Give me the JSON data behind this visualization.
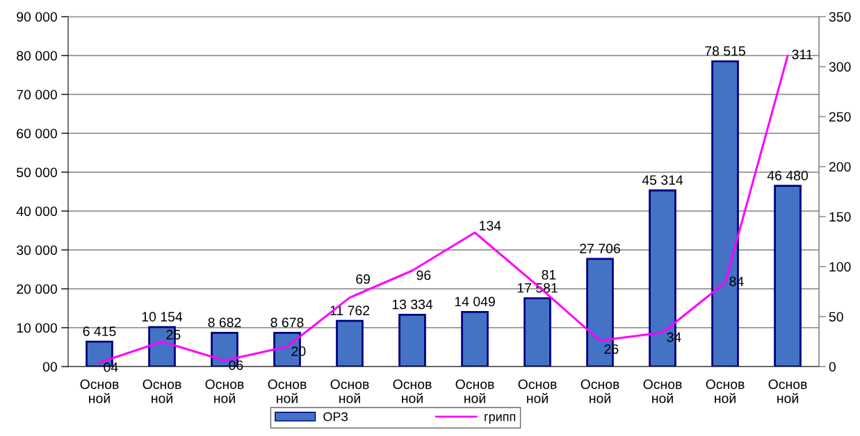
{
  "chart_data": {
    "type": "bar",
    "categories": [
      "Основ\nной",
      "Основ\nной",
      "Основ\nной",
      "Основ\nной",
      "Основ\nной",
      "Основ\nной",
      "Основ\nной",
      "Основ\nной",
      "Основ\nной",
      "Основ\nной",
      "Основ\nной",
      "Основ\nной"
    ],
    "series": [
      {
        "name": "ОРЗ",
        "color": "#4472c4",
        "values": [
          6415,
          10154,
          8682,
          8678,
          11762,
          13334,
          14049,
          17581,
          27706,
          45314,
          78515,
          46480
        ],
        "value_labels": [
          "6 415",
          "10 154",
          "8 682",
          "8 678",
          "11 762",
          "13 334",
          "14 049",
          "17 581",
          "27 706",
          "45 314",
          "78 515",
          "46 480"
        ]
      },
      {
        "name": "грипп",
        "type": "line",
        "axis": "y2",
        "color": "#ff00ff",
        "values": [
          4,
          25,
          6,
          20,
          69,
          96,
          134,
          81,
          26,
          34,
          84,
          311
        ],
        "value_labels": [
          "04",
          "25",
          "06",
          "20",
          "69",
          "96",
          "134",
          "81",
          "26",
          "34",
          "84",
          "311"
        ]
      }
    ],
    "ylim": [
      0,
      90000
    ],
    "yticks": [
      {
        "value": 0,
        "label": "00"
      },
      {
        "value": 10000,
        "label": "10 000"
      },
      {
        "value": 20000,
        "label": "20 000"
      },
      {
        "value": 30000,
        "label": "30 000"
      },
      {
        "value": 40000,
        "label": "40 000"
      },
      {
        "value": 50000,
        "label": "50 000"
      },
      {
        "value": 60000,
        "label": "60 000"
      },
      {
        "value": 70000,
        "label": "70 000"
      },
      {
        "value": 80000,
        "label": "80 000"
      },
      {
        "value": 90000,
        "label": "90 000"
      }
    ],
    "y2lim": [
      0,
      350
    ],
    "y2ticks": [
      0,
      50,
      100,
      150,
      200,
      250,
      300,
      350
    ],
    "grid": true,
    "legend": "bottom"
  }
}
